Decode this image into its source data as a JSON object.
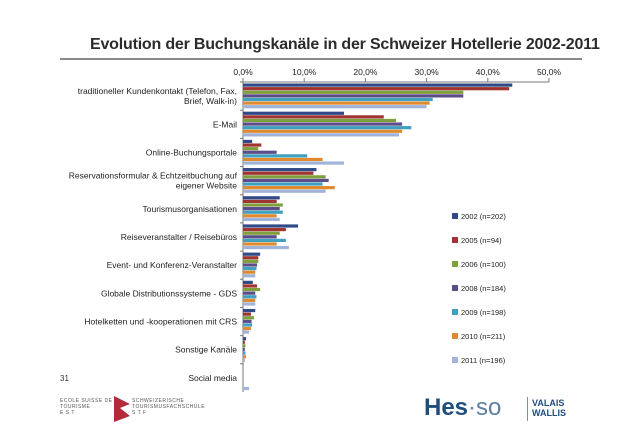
{
  "title": "Evolution der Buchungskanäle in der Schweizer Hotellerie 2002-2011",
  "page_number": "31",
  "footer": {
    "school_fr": "ECOLE SUISSE DE TOURISME",
    "school_fr_suffix": "E S T",
    "school_de": "SCHWEIZERISCHE TOURISMUSFACHSCHULE",
    "school_de_suffix": "S T F",
    "logo_hes": "Hes",
    "logo_so": "·so",
    "logo_valais": "VALAIS",
    "logo_wallis": "WALLIS"
  },
  "chart_data": {
    "type": "bar",
    "orientation": "horizontal",
    "title": "Evolution der Buchungskanäle in der Schweizer Hotellerie 2002-2011",
    "xlim": [
      0,
      50
    ],
    "xticks": [
      "0,0%",
      "10,0%",
      "20,0%",
      "30,0%",
      "40,0%",
      "50,0%"
    ],
    "grid": false,
    "legend_position": "right",
    "categories": [
      [
        "traditioneller Kundenkontakt (Telefon, Fax,",
        "Brief, Walk-in)"
      ],
      [
        "E-Mail"
      ],
      [
        "Online-Buchungsportale"
      ],
      [
        "Reservationsformular & Echtzeitbuchung auf",
        "eigener Website"
      ],
      [
        "Tourismusorganisationen"
      ],
      [
        "Reiseveranstalter / Reisebüros"
      ],
      [
        "Event- und Konferenz-Veranstalter"
      ],
      [
        "Globale Distributionssysteme - GDS"
      ],
      [
        "Hotelketten und -kooperationen mit CRS"
      ],
      [
        "Sonstige Kanäle"
      ],
      [
        "Social media"
      ]
    ],
    "series": [
      {
        "name": "2002 (n=202)",
        "color": "#2f4a86",
        "values": [
          44.0,
          16.5,
          1.5,
          12.0,
          6.0,
          9.0,
          2.8,
          1.6,
          2.0,
          0.5,
          0
        ]
      },
      {
        "name": "2005 (n=94)",
        "color": "#a03430",
        "values": [
          43.5,
          23.0,
          3.0,
          11.5,
          5.5,
          7.0,
          2.5,
          2.3,
          1.3,
          0.3,
          0
        ]
      },
      {
        "name": "2006 (n=100)",
        "color": "#7f9e3c",
        "values": [
          36.0,
          25.0,
          2.5,
          13.5,
          6.5,
          6.0,
          2.5,
          2.8,
          1.8,
          0.4,
          0
        ]
      },
      {
        "name": "2008 (n=184)",
        "color": "#5c4c8a",
        "values": [
          36.0,
          26.0,
          5.5,
          14.0,
          6.0,
          5.5,
          2.3,
          2.0,
          1.4,
          0.3,
          0
        ]
      },
      {
        "name": "2009 (n=198)",
        "color": "#3fa0c0",
        "values": [
          31.0,
          27.5,
          10.5,
          13.0,
          6.5,
          7.0,
          2.2,
          2.2,
          1.5,
          0.4,
          0
        ]
      },
      {
        "name": "2010 (n=211)",
        "color": "#e08a30",
        "values": [
          30.5,
          26.0,
          13.0,
          15.0,
          5.5,
          5.5,
          2.0,
          2.0,
          1.3,
          0.5,
          0
        ]
      },
      {
        "name": "2011 (n=196)",
        "color": "#9fb4d8",
        "values": [
          30.0,
          25.5,
          16.5,
          13.5,
          6.0,
          7.5,
          2.0,
          2.0,
          1.0,
          0.3,
          1.0
        ]
      }
    ]
  }
}
